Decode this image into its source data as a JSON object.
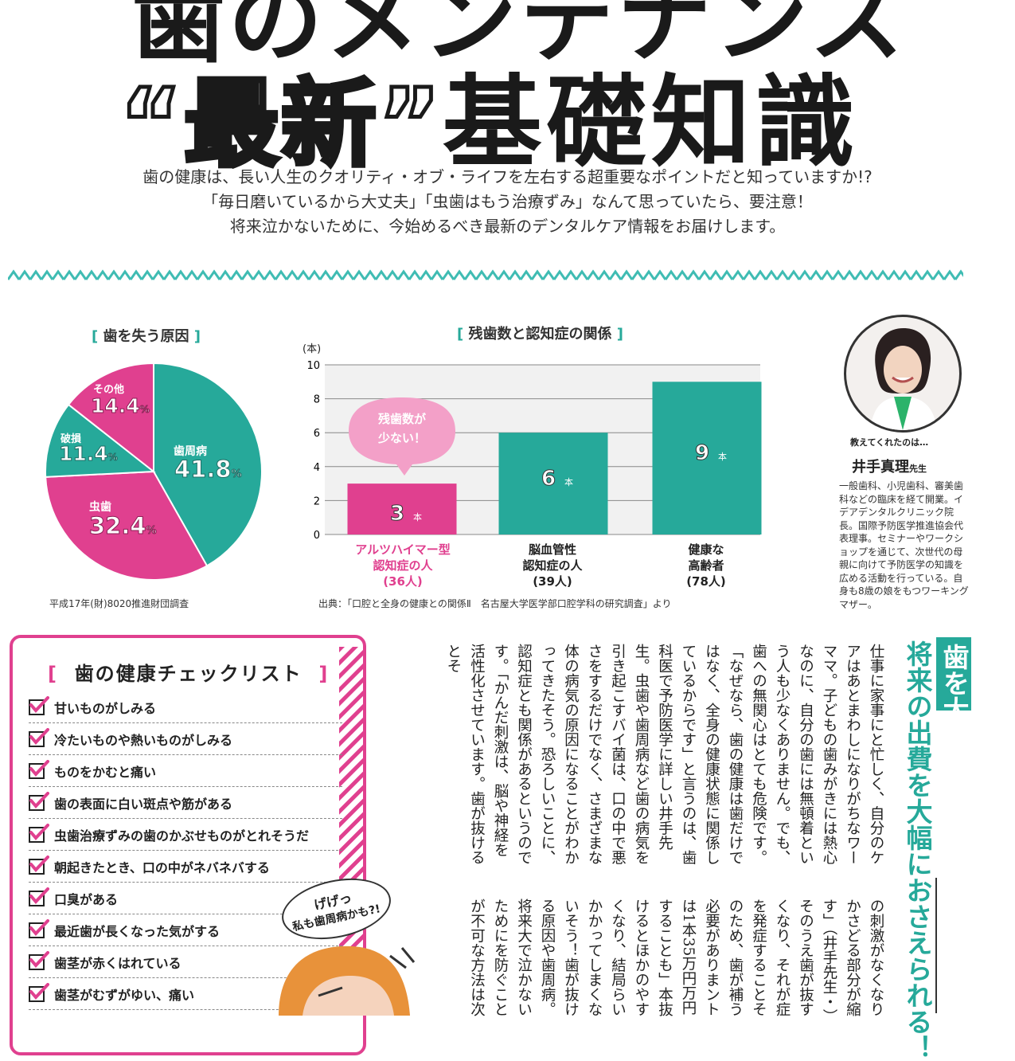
{
  "title": {
    "line1": "歯のメンテナンス",
    "quote_word": "“最新”",
    "line2_rest": "基礎知識"
  },
  "intro": [
    "歯の健康は、長い人生のクオリティ・オブ・ライフを左右する超重要なポイントだと知っていますか!?",
    "「毎日磨いているから大丈夫」「虫歯はもう治療ずみ」なんて思っていたら、要注意！",
    "将来泣かないために、今始めるべき最新のデンタルケア情報をお届けします。"
  ],
  "chart_data": [
    {
      "type": "pie",
      "title": "歯を失う原因",
      "categories": [
        "歯周病",
        "虫歯",
        "破損",
        "その他"
      ],
      "values": [
        41.8,
        32.4,
        11.4,
        14.4
      ],
      "unit": "%",
      "colors": [
        "#26a99a",
        "#e0408f",
        "#26a99a",
        "#e0408f"
      ],
      "source": "平成17年(財)8020推進財団調査"
    },
    {
      "type": "bar",
      "title": "残歯数と認知症の関係",
      "categories": [
        "アルツハイマー型\n認知症の人\n(36人)",
        "脳血管性\n認知症の人\n(39人)",
        "健康な\n高齢者\n(78人)"
      ],
      "values": [
        3,
        6,
        9
      ],
      "unit": "本",
      "ylabel": "(本)",
      "ylim": [
        0,
        10
      ],
      "yticks": [
        0,
        2,
        4,
        6,
        8,
        10
      ],
      "colors": [
        "#e0408f",
        "#26a99a",
        "#26a99a"
      ],
      "annotation": "残歯数が\n少ない！",
      "source": "出典：「口腔と全身の健康との関係Ⅱ　名古屋大学医学部口腔学科の研究調査」より"
    }
  ],
  "pie_labels": {
    "perio": {
      "name": "歯周病",
      "value": "41.8"
    },
    "caries": {
      "name": "虫歯",
      "value": "32.4"
    },
    "broken": {
      "name": "破損",
      "value": "11.4"
    },
    "other": {
      "name": "その他",
      "value": "14.4"
    },
    "pct": "%"
  },
  "bar_labels": {
    "cat1": [
      "アルツハイマー型",
      "認知症の人",
      "(36人)"
    ],
    "cat2": [
      "脳血管性",
      "認知症の人",
      "(39人)"
    ],
    "cat3": [
      "健康な",
      "高齢者",
      "(78人)"
    ],
    "annotation": [
      "残歯数が",
      "少ない！"
    ]
  },
  "profile": {
    "subtitle": "教えてくれたのは…",
    "name": "井手真理",
    "honorific": "先生",
    "bio": "一般歯科、小児歯科、審美歯科などの臨床を経て開業。イデアデンタルクリニック院長。国際予防医学推進協会代表理事。セミナーやワークショップを通じて、次世代の母親に向けて予防医学の知識を広める活動を行っている。自身も8歳の娘をもつワーキングマザー。"
  },
  "checklist": {
    "title": "歯の健康チェックリスト",
    "items": [
      "甘いものがしみる",
      "冷たいものや熱いものがしみる",
      "ものをかむと痛い",
      "歯の表面に白い斑点や筋がある",
      "虫歯治療ずみの歯のかぶせものがとれそうだ",
      "朝起きたとき、口の中がネバネバする",
      "口臭がある",
      "最近歯が長くなった気がする",
      "歯茎が赤くはれている",
      "歯茎がむずがゆい、痛い"
    ]
  },
  "speech": {
    "line1": "げげっ",
    "line2": "私も歯周病かも?!"
  },
  "headline": {
    "line1": "歯を大切にすることで",
    "line2": "将来の出費を大幅におさえられる！"
  },
  "body": {
    "upper": "仕事に家事にと忙しく、自分のケアはあとまわしになりがちなワーママ。子どもの歯みがきには熱心なのに、自分の歯には無頓着という人も少なくありません。でも、歯への無関心はとても危険です。「なぜなら、歯の健康は歯だけではなく、全身の健康状態に関係しているからです」と言うのは、歯科医で予防医学に詳しい井手先生。虫歯や歯周病など歯の病気を引き起こすバイ菌は、口の中で悪さをするだけでなく、さまざまな体の病気の原因になることがわかってきたそう。恐ろしいことに、認知症とも関係があるというのです。「かんだ刺激は、脳や神経を活性化させています。歯が抜けるとそ",
    "lower": "の刺激がなくなりかさどる部分が縮す」（井手先生・）そのうえ歯が抜すくなり、それが症を発症することそのため、歯が補う必要がありまントは1本35万円万円することも」本抜けるとほかのやすくなり、結局らいかかってしまくないそう！歯が抜ける原因や歯周病。将来大で泣かないためにを防ぐことが不可な方法は次のペー"
  }
}
